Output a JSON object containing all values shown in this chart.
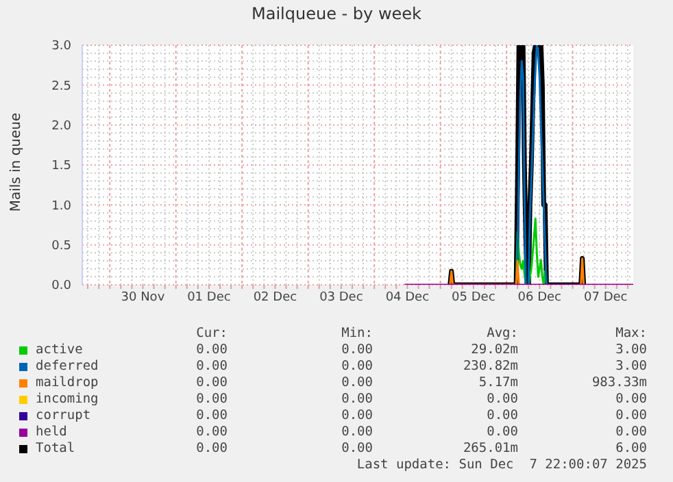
{
  "chart_data": {
    "type": "line",
    "title": "Mailqueue - by week",
    "ylabel": "Mails in queue",
    "legend": "bottom",
    "grid": true,
    "x": [
      "2025-12-04T11:00",
      "2025-12-05T03:30",
      "2025-12-05T04:00",
      "2025-12-05T04:30",
      "2025-12-06T03:30",
      "2025-12-06T04:00",
      "2025-12-06T04:30",
      "2025-12-06T05:00",
      "2025-12-06T05:30",
      "2025-12-06T06:00",
      "2025-12-06T06:30",
      "2025-12-06T07:00",
      "2025-12-06T07:30",
      "2025-12-06T08:00",
      "2025-12-06T08:30",
      "2025-12-06T09:00",
      "2025-12-06T09:30",
      "2025-12-06T10:00",
      "2025-12-06T10:30",
      "2025-12-06T11:00",
      "2025-12-06T11:30",
      "2025-12-06T12:00",
      "2025-12-06T12:30",
      "2025-12-06T13:00",
      "2025-12-06T13:30",
      "2025-12-06T14:00",
      "2025-12-06T14:30",
      "2025-12-07T03:00",
      "2025-12-07T03:30",
      "2025-12-07T04:00",
      "2025-12-07T22:00"
    ],
    "series": [
      {
        "name": "active",
        "color": "#00cc00",
        "values": [
          null,
          null,
          null,
          null,
          0,
          0.66,
          0.4,
          0.25,
          0.2,
          0.3,
          0.15,
          0,
          null,
          0,
          0.1,
          0.2,
          0.4,
          0.6,
          0.83,
          0.4,
          0.1,
          0.2,
          0.31,
          0.1,
          0,
          0.17,
          0,
          null,
          null,
          null,
          null
        ]
      },
      {
        "name": "deferred",
        "color": "#0066b3",
        "values": [
          null,
          null,
          null,
          null,
          0,
          0.3,
          1.5,
          2.4,
          2.8,
          2.6,
          1.2,
          0,
          null,
          0,
          0.9,
          1.3,
          1.8,
          2.3,
          2.7,
          3.0,
          2.9,
          2.6,
          2.0,
          1.5,
          1.0,
          0.5,
          0,
          null,
          null,
          null,
          null
        ]
      },
      {
        "name": "maildrop",
        "color": "#ff8000",
        "values": [
          null,
          0,
          0.17,
          0,
          0,
          0.3,
          0,
          null,
          null,
          null,
          null,
          null,
          null,
          null,
          null,
          null,
          null,
          null,
          null,
          null,
          null,
          null,
          null,
          null,
          null,
          null,
          null,
          0,
          0.33,
          0,
          null
        ]
      },
      {
        "name": "incoming",
        "color": "#ffcc00",
        "values": [
          null,
          null,
          null,
          null,
          null,
          null,
          null,
          null,
          null,
          null,
          null,
          null,
          null,
          null,
          null,
          null,
          null,
          null,
          null,
          null,
          null,
          null,
          null,
          null,
          null,
          null,
          null,
          null,
          null,
          null,
          null
        ]
      },
      {
        "name": "corrupt",
        "color": "#330099",
        "values": [
          null,
          null,
          null,
          null,
          null,
          null,
          null,
          null,
          null,
          null,
          null,
          null,
          null,
          null,
          null,
          null,
          null,
          null,
          null,
          null,
          null,
          null,
          null,
          null,
          null,
          null,
          null,
          null,
          null,
          null,
          null
        ]
      },
      {
        "name": "held",
        "color": "#990099",
        "values": [
          0,
          0,
          0,
          0,
          0,
          0,
          0,
          0,
          0,
          0,
          0,
          0,
          0,
          0,
          0,
          0,
          0,
          0,
          0,
          0,
          0,
          0,
          0,
          0,
          0,
          0,
          0,
          0,
          0,
          0,
          0
        ]
      },
      {
        "name": "Total",
        "color": "#000000",
        "values": [
          null,
          0,
          0.17,
          0,
          0,
          1.3,
          3,
          3,
          3,
          3,
          1.5,
          0.6,
          0,
          0,
          1.0,
          1.5,
          2.2,
          2.9,
          3,
          3,
          3,
          3,
          3,
          2.5,
          1.0,
          1.0,
          0,
          0,
          0.33,
          0,
          null
        ]
      }
    ],
    "xlim": [
      "2025-11-29T14:00",
      "2025-12-07T22:00"
    ],
    "xticks": [
      {
        "value": "2025-11-29T16:00",
        "label": null
      },
      {
        "value": "2025-11-29T20:00",
        "label": null
      },
      {
        "value": "2025-11-30T00:00",
        "label": null
      },
      {
        "value": "2025-11-30T04:00",
        "label": null
      },
      {
        "value": "2025-11-30T08:00",
        "label": null
      },
      {
        "value": "2025-11-30T12:00",
        "label": "30 Nov"
      },
      {
        "value": "2025-11-30T16:00",
        "label": null
      },
      {
        "value": "2025-11-30T20:00",
        "label": null
      },
      {
        "value": "2025-12-01T00:00",
        "label": null
      },
      {
        "value": "2025-12-01T04:00",
        "label": null
      },
      {
        "value": "2025-12-01T08:00",
        "label": null
      },
      {
        "value": "2025-12-01T12:00",
        "label": "01 Dec"
      },
      {
        "value": "2025-12-01T16:00",
        "label": null
      },
      {
        "value": "2025-12-01T20:00",
        "label": null
      },
      {
        "value": "2025-12-02T00:00",
        "label": null
      },
      {
        "value": "2025-12-02T04:00",
        "label": null
      },
      {
        "value": "2025-12-02T08:00",
        "label": null
      },
      {
        "value": "2025-12-02T12:00",
        "label": "02 Dec"
      },
      {
        "value": "2025-12-02T16:00",
        "label": null
      },
      {
        "value": "2025-12-02T20:00",
        "label": null
      },
      {
        "value": "2025-12-03T00:00",
        "label": null
      },
      {
        "value": "2025-12-03T04:00",
        "label": null
      },
      {
        "value": "2025-12-03T08:00",
        "label": null
      },
      {
        "value": "2025-12-03T12:00",
        "label": "03 Dec"
      },
      {
        "value": "2025-12-03T16:00",
        "label": null
      },
      {
        "value": "2025-12-03T20:00",
        "label": null
      },
      {
        "value": "2025-12-04T00:00",
        "label": null
      },
      {
        "value": "2025-12-04T04:00",
        "label": null
      },
      {
        "value": "2025-12-04T08:00",
        "label": null
      },
      {
        "value": "2025-12-04T12:00",
        "label": "04 Dec"
      },
      {
        "value": "2025-12-04T16:00",
        "label": null
      },
      {
        "value": "2025-12-04T20:00",
        "label": null
      },
      {
        "value": "2025-12-05T00:00",
        "label": null
      },
      {
        "value": "2025-12-05T04:00",
        "label": null
      },
      {
        "value": "2025-12-05T08:00",
        "label": null
      },
      {
        "value": "2025-12-05T12:00",
        "label": "05 Dec"
      },
      {
        "value": "2025-12-05T16:00",
        "label": null
      },
      {
        "value": "2025-12-05T20:00",
        "label": null
      },
      {
        "value": "2025-12-06T00:00",
        "label": null
      },
      {
        "value": "2025-12-06T04:00",
        "label": null
      },
      {
        "value": "2025-12-06T08:00",
        "label": null
      },
      {
        "value": "2025-12-06T12:00",
        "label": "06 Dec"
      },
      {
        "value": "2025-12-06T16:00",
        "label": null
      },
      {
        "value": "2025-12-06T20:00",
        "label": null
      },
      {
        "value": "2025-12-07T00:00",
        "label": null
      },
      {
        "value": "2025-12-07T04:00",
        "label": null
      },
      {
        "value": "2025-12-07T08:00",
        "label": null
      },
      {
        "value": "2025-12-07T12:00",
        "label": "07 Dec"
      },
      {
        "value": "2025-12-07T16:00",
        "label": null
      },
      {
        "value": "2025-12-07T20:00",
        "label": null
      }
    ],
    "ylim": [
      0,
      3
    ],
    "yticks": [
      {
        "value": 0,
        "label": "0.0"
      },
      {
        "value": 0.1,
        "label": null
      },
      {
        "value": 0.2,
        "label": null
      },
      {
        "value": 0.3,
        "label": null
      },
      {
        "value": 0.4,
        "label": null
      },
      0.5,
      {
        "value": 0.6,
        "label": null
      },
      {
        "value": 0.7,
        "label": null
      },
      {
        "value": 0.8,
        "label": null
      },
      {
        "value": 0.9,
        "label": null
      },
      {
        "value": 1,
        "label": "1.0"
      },
      {
        "value": 1.1,
        "label": null
      },
      {
        "value": 1.2,
        "label": null
      },
      {
        "value": 1.3,
        "label": null
      },
      {
        "value": 1.4,
        "label": null
      },
      1.5,
      {
        "value": 1.6,
        "label": null
      },
      {
        "value": 1.7,
        "label": null
      },
      {
        "value": 1.8,
        "label": null
      },
      {
        "value": 1.9,
        "label": null
      },
      {
        "value": 2,
        "label": "2.0"
      },
      {
        "value": 2.1,
        "label": null
      },
      {
        "value": 2.2,
        "label": null
      },
      {
        "value": 2.3,
        "label": null
      },
      {
        "value": 2.4,
        "label": null
      },
      2.5,
      {
        "value": 2.6,
        "label": null
      },
      {
        "value": 2.7,
        "label": null
      },
      {
        "value": 2.8,
        "label": null
      },
      {
        "value": 2.9,
        "label": null
      },
      {
        "value": 3,
        "label": "3.0"
      }
    ],
    "annotations": [
      "Cur:",
      "Min:",
      "Avg:",
      "Max:",
      "0.00",
      "0.00",
      "29.02m",
      "3.00",
      "0.00",
      "0.00",
      "230.82m",
      "3.00",
      "0.00",
      "0.00",
      "5.17m",
      "983.33m",
      "0.00",
      "0.00",
      "0.00",
      "0.00",
      "0.00",
      "0.00",
      "0.00",
      "0.00",
      "0.00",
      "0.00",
      "0.00",
      "0.00",
      "0.00",
      "0.00",
      "265.01m",
      "6.00",
      "Last update: Sun Dec  7 22:00:07 2025"
    ]
  }
}
